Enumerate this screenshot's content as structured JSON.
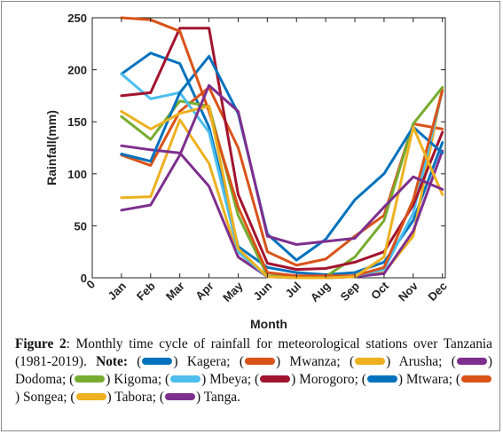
{
  "chart_data": {
    "type": "line",
    "title": "",
    "xlabel": "Month",
    "ylabel": "Rainfall(mm)",
    "x_origin_label": "0",
    "categories": [
      "Jan",
      "Feb",
      "Mar",
      "Apr",
      "May",
      "Jun",
      "Jul",
      "Aug",
      "Sep",
      "Oct",
      "Nov",
      "Dec"
    ],
    "yticks": [
      0,
      50,
      100,
      150,
      200,
      250
    ],
    "ylim": [
      0,
      250
    ],
    "grid": false,
    "series": [
      {
        "name": "Kagera",
        "color": "#0072BD",
        "values": [
          196,
          216,
          206,
          145,
          30,
          10,
          5,
          3,
          5,
          15,
          55,
          130
        ]
      },
      {
        "name": "Mwanza",
        "color": "#D95319",
        "values": [
          118,
          108,
          160,
          183,
          125,
          25,
          12,
          18,
          40,
          60,
          148,
          143
        ]
      },
      {
        "name": "Arusha",
        "color": "#EDB120",
        "values": [
          77,
          78,
          152,
          110,
          20,
          2,
          1,
          0,
          2,
          5,
          40,
          183
        ]
      },
      {
        "name": "Dodoma",
        "color": "#7E2F8E",
        "values": [
          127,
          123,
          120,
          88,
          20,
          1,
          0,
          0,
          1,
          4,
          45,
          122
        ]
      },
      {
        "name": "Kigoma",
        "color": "#77AC30",
        "values": [
          155,
          133,
          170,
          165,
          60,
          2,
          1,
          1,
          20,
          55,
          148,
          183
        ]
      },
      {
        "name": "Mbeya",
        "color": "#4DBEEE",
        "values": [
          196,
          172,
          178,
          140,
          25,
          1,
          0,
          0,
          2,
          8,
          62,
          180
        ]
      },
      {
        "name": "Morogoro",
        "color": "#A2142F",
        "values": [
          175,
          178,
          240,
          240,
          80,
          14,
          8,
          9,
          15,
          25,
          70,
          140
        ]
      },
      {
        "name": "Mtwara",
        "color": "#0072BD",
        "values": [
          119,
          112,
          178,
          213,
          158,
          42,
          17,
          37,
          75,
          100,
          145,
          120
        ]
      },
      {
        "name": "Songea",
        "color": "#D95319",
        "values": [
          250,
          248,
          237,
          160,
          68,
          5,
          2,
          2,
          2,
          10,
          75,
          180
        ]
      },
      {
        "name": "Tabora",
        "color": "#EDB120",
        "values": [
          160,
          143,
          158,
          165,
          28,
          1,
          0,
          0,
          1,
          20,
          145,
          80
        ]
      },
      {
        "name": "Tanga",
        "color": "#7E2F8E",
        "values": [
          65,
          70,
          118,
          185,
          160,
          40,
          32,
          35,
          38,
          68,
          97,
          85
        ]
      }
    ]
  },
  "caption": {
    "figure_label": "Figure 2",
    "text": ": Monthly time cycle of rainfall for meteorological stations over Tanzania (1981-2019). ",
    "note_label": "Note:",
    "legend": [
      {
        "prefix": " (",
        "suffix": ") Kagera; ",
        "color": "#0072BD"
      },
      {
        "prefix": "(",
        "suffix": ") Mwanza; ",
        "color": "#D95319"
      },
      {
        "prefix": "(",
        "suffix": ") Arusha; ",
        "color": "#EDB120"
      },
      {
        "prefix": "(",
        "suffix": ") Dodoma; ",
        "color": "#7E2F8E"
      },
      {
        "prefix": "(",
        "suffix": ") Kigoma; ",
        "color": "#77AC30"
      },
      {
        "prefix": "(",
        "suffix": ") Mbeya; ",
        "color": "#4DBEEE"
      },
      {
        "prefix": "(",
        "suffix": ") Morogoro; ",
        "color": "#A2142F"
      },
      {
        "prefix": "(",
        "suffix": ") Mtwara; ",
        "color": "#0072BD"
      },
      {
        "prefix": "(",
        "suffix": ") Songea; ",
        "color": "#D95319"
      },
      {
        "prefix": "(",
        "suffix": ") Tabora; ",
        "color": "#EDB120"
      },
      {
        "prefix": "(",
        "suffix": ") Tanga.",
        "color": "#7E2F8E"
      }
    ]
  }
}
